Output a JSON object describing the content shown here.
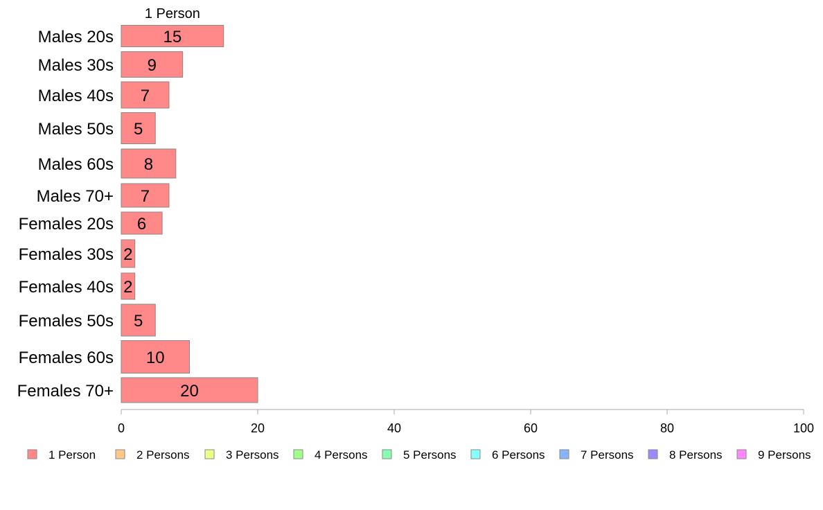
{
  "chart_data": {
    "type": "bar",
    "orientation": "horizontal",
    "column_header": "1 Person",
    "categories": [
      "Males 20s",
      "Males 30s",
      "Males 40s",
      "Males 50s",
      "Males 60s",
      "Males 70+",
      "Females 20s",
      "Females 30s",
      "Females 40s",
      "Females 50s",
      "Females 60s",
      "Females 70+"
    ],
    "series": [
      {
        "name": "1 Person",
        "color": "#ff8888",
        "values": [
          15,
          9,
          7,
          5,
          8,
          7,
          6,
          2,
          2,
          5,
          10,
          20
        ]
      },
      {
        "name": "2 Persons",
        "color": "#ffc888",
        "values": [
          0,
          0,
          0,
          0,
          0,
          0,
          0,
          0,
          0,
          0,
          0,
          0
        ]
      },
      {
        "name": "3 Persons",
        "color": "#eeff88",
        "values": [
          0,
          0,
          0,
          0,
          0,
          0,
          0,
          0,
          0,
          0,
          0,
          0
        ]
      },
      {
        "name": "4 Persons",
        "color": "#a0ff88",
        "values": [
          0,
          0,
          0,
          0,
          0,
          0,
          0,
          0,
          0,
          0,
          0,
          0
        ]
      },
      {
        "name": "5 Persons",
        "color": "#88ffb0",
        "values": [
          0,
          0,
          0,
          0,
          0,
          0,
          0,
          0,
          0,
          0,
          0,
          0
        ]
      },
      {
        "name": "6 Persons",
        "color": "#88ffff",
        "values": [
          0,
          0,
          0,
          0,
          0,
          0,
          0,
          0,
          0,
          0,
          0,
          0
        ]
      },
      {
        "name": "7 Persons",
        "color": "#88b4ff",
        "values": [
          0,
          0,
          0,
          0,
          0,
          0,
          0,
          0,
          0,
          0,
          0,
          0
        ]
      },
      {
        "name": "8 Persons",
        "color": "#a088ff",
        "values": [
          0,
          0,
          0,
          0,
          0,
          0,
          0,
          0,
          0,
          0,
          0,
          0
        ]
      },
      {
        "name": "9 Persons",
        "color": "#ff88ff",
        "values": [
          0,
          0,
          0,
          0,
          0,
          0,
          0,
          0,
          0,
          0,
          0,
          0
        ]
      }
    ],
    "xlim": [
      0,
      100
    ],
    "xticks": [
      0,
      20,
      40,
      60,
      80,
      100
    ],
    "grid": false,
    "legend_position": "bottom",
    "bar_stroke_color": "#888888",
    "axis_color": "#aaaaaa"
  }
}
